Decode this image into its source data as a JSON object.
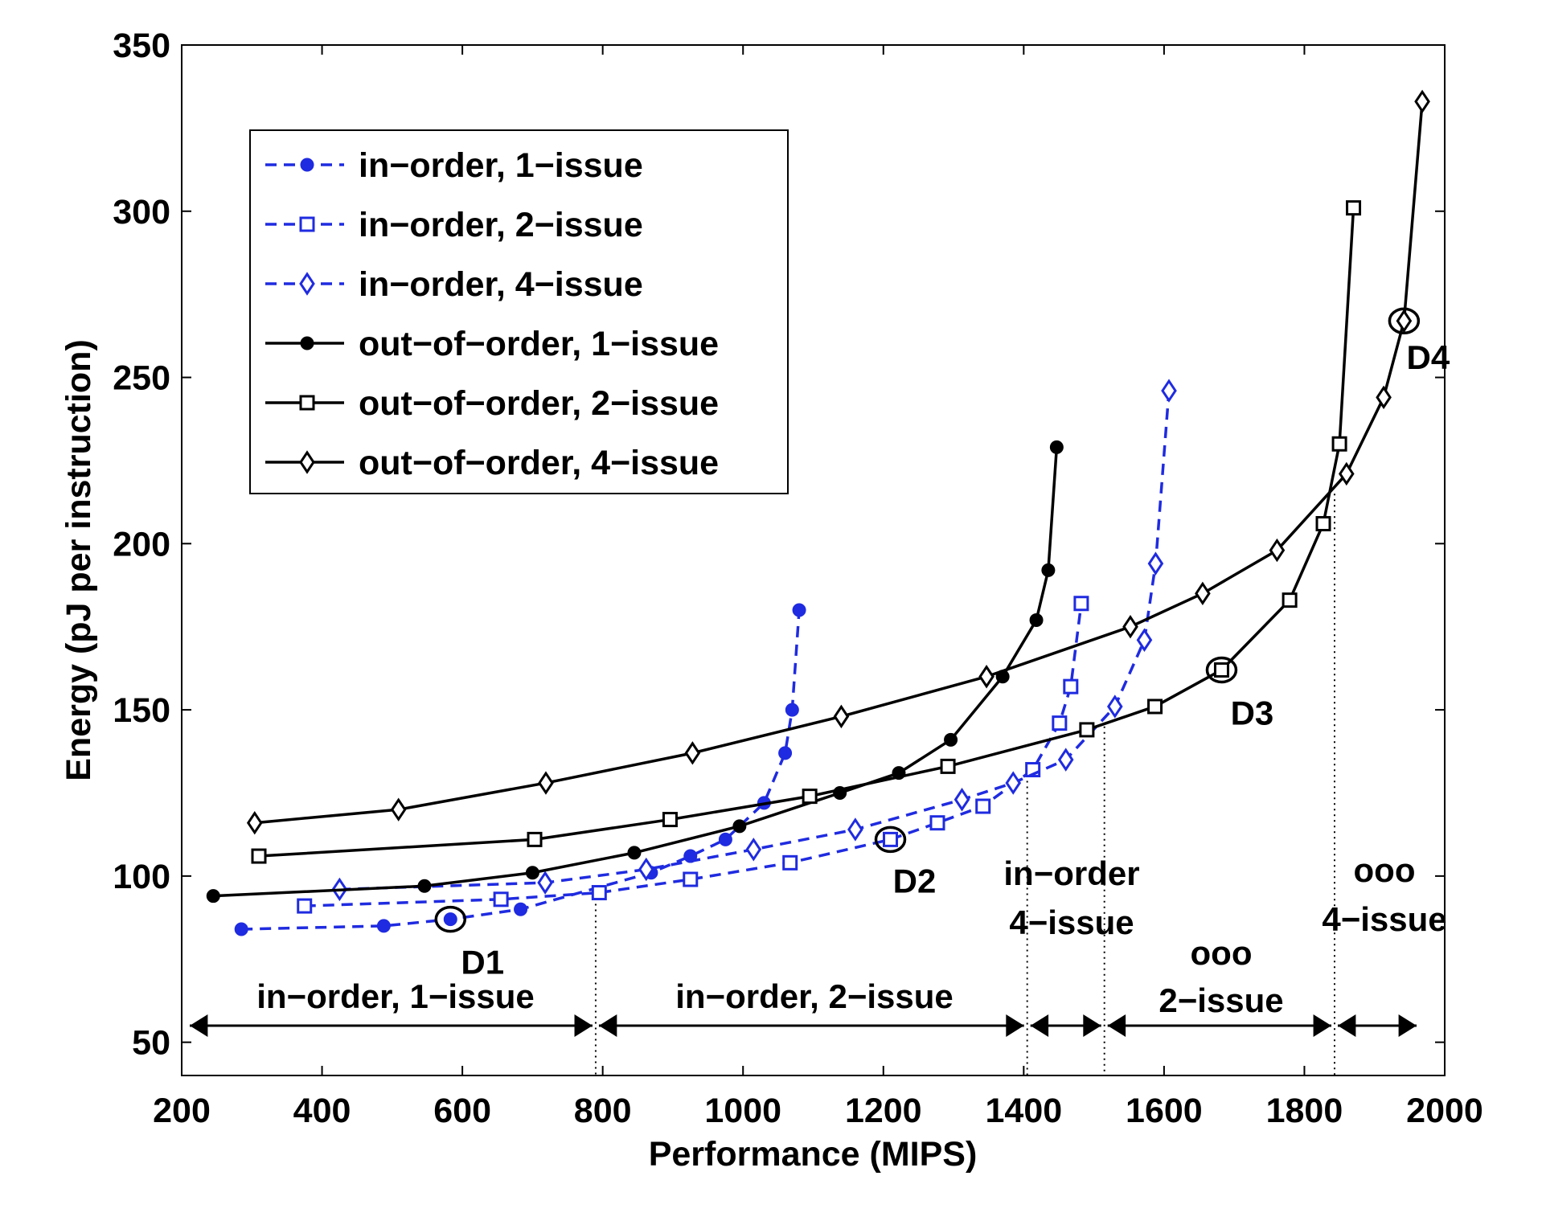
{
  "chart_data": {
    "type": "line",
    "title": "",
    "xlabel": "Performance (MIPS)",
    "ylabel": "Energy (pJ per instruction)",
    "xlim": [
      200,
      2000
    ],
    "ylim": [
      40,
      350
    ],
    "xticks": [
      "200",
      "400",
      "600",
      "800",
      "1000",
      "1200",
      "1400",
      "1600",
      "1800",
      "2000"
    ],
    "yticks": [
      "50",
      "100",
      "150",
      "200",
      "250",
      "300",
      "350"
    ],
    "grid": false,
    "legend_position": "top-left",
    "series": [
      {
        "name": "in−order, 1−issue",
        "color": "#1f2be0",
        "line": "dashed",
        "marker": "dot",
        "points": [
          [
            285,
            84
          ],
          [
            488,
            85
          ],
          [
            583,
            87
          ],
          [
            683,
            90
          ],
          [
            869,
            101
          ],
          [
            925,
            106
          ],
          [
            975,
            111
          ],
          [
            1030,
            122
          ],
          [
            1060,
            137
          ],
          [
            1070,
            150
          ],
          [
            1080,
            180
          ]
        ]
      },
      {
        "name": "in−order, 2−issue",
        "color": "#1f2be0",
        "line": "dashed",
        "marker": "square",
        "points": [
          [
            375,
            91
          ],
          [
            655,
            93
          ],
          [
            795,
            95
          ],
          [
            925,
            99
          ],
          [
            1067,
            104
          ],
          [
            1210,
            111
          ],
          [
            1277,
            116
          ],
          [
            1342,
            121
          ],
          [
            1413,
            132
          ],
          [
            1451,
            146
          ],
          [
            1467,
            157
          ],
          [
            1482,
            182
          ]
        ]
      },
      {
        "name": "in−order, 4−issue",
        "color": "#1f2be0",
        "line": "dashed",
        "marker": "diamond",
        "points": [
          [
            425,
            96
          ],
          [
            718,
            98
          ],
          [
            862,
            102
          ],
          [
            1015,
            108
          ],
          [
            1160,
            114
          ],
          [
            1312,
            123
          ],
          [
            1385,
            128
          ],
          [
            1460,
            135
          ],
          [
            1530,
            151
          ],
          [
            1572,
            171
          ],
          [
            1588,
            194
          ],
          [
            1607,
            246
          ]
        ]
      },
      {
        "name": "out−of−order, 1−issue",
        "color": "#000000",
        "line": "solid",
        "marker": "dot",
        "points": [
          [
            245,
            94
          ],
          [
            546,
            97
          ],
          [
            700,
            101
          ],
          [
            845,
            107
          ],
          [
            995,
            115
          ],
          [
            1138,
            125
          ],
          [
            1222,
            131
          ],
          [
            1296,
            141
          ],
          [
            1370,
            160
          ],
          [
            1418,
            177
          ],
          [
            1435,
            192
          ],
          [
            1447,
            229
          ]
        ]
      },
      {
        "name": "out−of−order, 2−issue",
        "color": "#000000",
        "line": "solid",
        "marker": "square",
        "points": [
          [
            310,
            106
          ],
          [
            703,
            111
          ],
          [
            896,
            117
          ],
          [
            1095,
            124
          ],
          [
            1292,
            133
          ],
          [
            1490,
            144
          ],
          [
            1587,
            151
          ],
          [
            1682,
            162
          ],
          [
            1779,
            183
          ],
          [
            1827,
            206
          ],
          [
            1850,
            230
          ],
          [
            1870,
            301
          ]
        ]
      },
      {
        "name": "out−of−order, 4−issue",
        "color": "#000000",
        "line": "solid",
        "marker": "diamond",
        "points": [
          [
            304,
            116
          ],
          [
            509,
            120
          ],
          [
            719,
            128
          ],
          [
            928,
            137
          ],
          [
            1140,
            148
          ],
          [
            1347,
            160
          ],
          [
            1552,
            175
          ],
          [
            1655,
            185
          ],
          [
            1761,
            198
          ],
          [
            1860,
            221
          ],
          [
            1913,
            244
          ],
          [
            1942,
            267
          ],
          [
            1968,
            333
          ]
        ]
      }
    ],
    "design_points": [
      {
        "label": "D1",
        "x": 583,
        "y": 87
      },
      {
        "label": "D2",
        "x": 1210,
        "y": 111
      },
      {
        "label": "D3",
        "x": 1682,
        "y": 162
      },
      {
        "label": "D4",
        "x": 1942,
        "y": 267
      }
    ],
    "regions": [
      {
        "lines": [
          "in−order, 1−issue"
        ],
        "x_start": 200,
        "x_end": 790
      },
      {
        "lines": [
          "in−order, 2−issue"
        ],
        "x_start": 790,
        "x_end": 1405
      },
      {
        "lines": [
          "in−order",
          "4−issue"
        ],
        "x_start": 1405,
        "x_end": 1515
      },
      {
        "lines": [
          "ooo",
          "2−issue"
        ],
        "x_start": 1515,
        "x_end": 1843
      },
      {
        "lines": [
          "ooo",
          "4−issue"
        ],
        "x_start": 1843,
        "x_end": 1970
      }
    ],
    "boundaries": [
      790,
      1405,
      1515,
      1843
    ]
  }
}
